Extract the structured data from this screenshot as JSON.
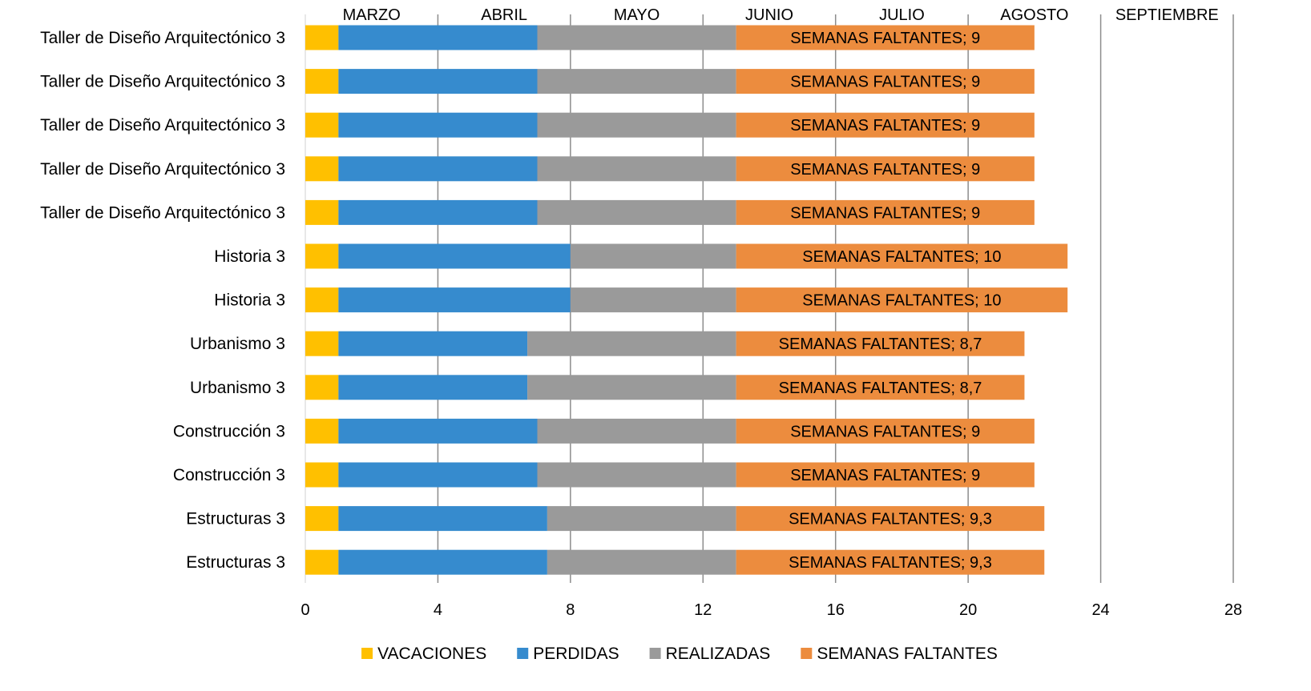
{
  "chart_data": {
    "type": "bar",
    "orientation": "horizontal",
    "stacked": true,
    "categories": [
      "Taller de Diseño Arquitectónico 3",
      "Taller de Diseño Arquitectónico 3",
      "Taller de Diseño Arquitectónico 3",
      "Taller de Diseño Arquitectónico 3",
      "Taller de Diseño Arquitectónico 3",
      "Historia 3",
      "Historia 3",
      "Urbanismo 3",
      "Urbanismo 3",
      "Construcción 3",
      "Construcción 3",
      "Estructuras 3",
      "Estructuras 3"
    ],
    "series": [
      {
        "name": "VACACIONES",
        "color": "#FFC000",
        "values": [
          1,
          1,
          1,
          1,
          1,
          1,
          1,
          1,
          1,
          1,
          1,
          1,
          1
        ]
      },
      {
        "name": "PERDIDAS",
        "color": "#368BCE",
        "values": [
          6,
          6,
          6,
          6,
          6,
          7,
          7,
          5.7,
          5.7,
          6,
          6,
          6.3,
          6.3
        ]
      },
      {
        "name": "REALIZADAS",
        "color": "#9A9A9A",
        "values": [
          6,
          6,
          6,
          6,
          6,
          5,
          5,
          6.3,
          6.3,
          6,
          6,
          5.7,
          5.7
        ]
      },
      {
        "name": "SEMANAS FALTANTES",
        "color": "#EC8C3E",
        "values": [
          9,
          9,
          9,
          9,
          9,
          10,
          10,
          8.7,
          8.7,
          9,
          9,
          9.3,
          9.3
        ]
      }
    ],
    "data_labels": [
      "SEMANAS FALTANTES; 9",
      "SEMANAS FALTANTES; 9",
      "SEMANAS FALTANTES; 9",
      "SEMANAS FALTANTES; 9",
      "SEMANAS FALTANTES; 9",
      "SEMANAS FALTANTES; 10",
      "SEMANAS FALTANTES; 10",
      "SEMANAS FALTANTES; 8,7",
      "SEMANAS FALTANTES; 8,7",
      "SEMANAS FALTANTES; 9",
      "SEMANAS FALTANTES; 9",
      "SEMANAS FALTANTES; 9,3",
      "SEMANAS FALTANTES; 9,3"
    ],
    "xlim": [
      0,
      28
    ],
    "xticks": [
      0,
      4,
      8,
      12,
      16,
      20,
      24,
      28
    ],
    "month_labels": [
      {
        "label": "MARZO",
        "x": 2
      },
      {
        "label": "ABRIL",
        "x": 6
      },
      {
        "label": "MAYO",
        "x": 10
      },
      {
        "label": "JUNIO",
        "x": 14
      },
      {
        "label": "JULIO",
        "x": 18
      },
      {
        "label": "AGOSTO",
        "x": 22
      },
      {
        "label": "SEPTIEMBRE",
        "x": 26
      }
    ],
    "grid": true,
    "legend": "bottom",
    "title": "",
    "xlabel": "",
    "ylabel": ""
  }
}
